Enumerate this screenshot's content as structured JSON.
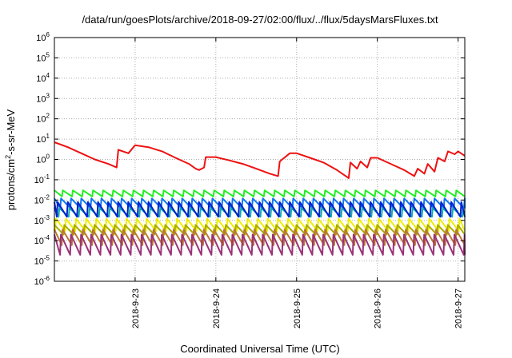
{
  "chart_data": {
    "type": "line",
    "title": "/data/run/goesPlots/archive/2018-09-27/02:00/flux/../flux/5daysMarsFluxes.txt",
    "xlabel": "Coordinated Universal Time (UTC)",
    "ylabel": "protons/cm2-s-sr-MeV",
    "ylabel_parts": {
      "base": "protons/cm",
      "sup": "2",
      "rest": "-s-sr-MeV"
    },
    "yscale": "log",
    "ylim_exp": [
      -6,
      6
    ],
    "ytick_labels": [
      {
        "base": "10",
        "exp": "-6"
      },
      {
        "base": "10",
        "exp": "-5"
      },
      {
        "base": "10",
        "exp": "-4"
      },
      {
        "base": "10",
        "exp": "-3"
      },
      {
        "base": "10",
        "exp": "-2"
      },
      {
        "base": "10",
        "exp": "-1"
      },
      {
        "base": "10",
        "exp": "0"
      },
      {
        "base": "10",
        "exp": "1"
      },
      {
        "base": "10",
        "exp": "2"
      },
      {
        "base": "10",
        "exp": "3"
      },
      {
        "base": "10",
        "exp": "4"
      },
      {
        "base": "10",
        "exp": "5"
      },
      {
        "base": "10",
        "exp": "6"
      }
    ],
    "x_start": "2018-09-22 00:00",
    "x_end": "2018-09-27 02:00",
    "xticks": [
      "2018-9-23",
      "2018-9-24",
      "2018-9-25",
      "2018-9-26",
      "2018-9-27"
    ],
    "grid": true,
    "series": [
      {
        "color": "#ee1111",
        "x": [
          "2018-09-22 00:00",
          "2018-09-22 04:00",
          "2018-09-22 08:00",
          "2018-09-22 12:00",
          "2018-09-22 16:00",
          "2018-09-22 18:30",
          "2018-09-22 19:00",
          "2018-09-22 22:00",
          "2018-09-23 00:00",
          "2018-09-23 04:00",
          "2018-09-23 08:00",
          "2018-09-23 12:00",
          "2018-09-23 16:00",
          "2018-09-23 18:00",
          "2018-09-23 19:00",
          "2018-09-23 20:30",
          "2018-09-23 21:00",
          "2018-09-24 00:00",
          "2018-09-24 04:00",
          "2018-09-24 08:00",
          "2018-09-24 12:00",
          "2018-09-24 16:00",
          "2018-09-24 18:30",
          "2018-09-24 19:00",
          "2018-09-24 22:00",
          "2018-09-25 00:00",
          "2018-09-25 04:00",
          "2018-09-25 08:00",
          "2018-09-25 12:00",
          "2018-09-25 15:30",
          "2018-09-25 16:00",
          "2018-09-25 18:00",
          "2018-09-25 19:00",
          "2018-09-25 21:00",
          "2018-09-25 22:00",
          "2018-09-26 00:00",
          "2018-09-26 04:00",
          "2018-09-26 08:00",
          "2018-09-26 11:00",
          "2018-09-26 12:00",
          "2018-09-26 14:00",
          "2018-09-26 15:00",
          "2018-09-26 17:00",
          "2018-09-26 18:00",
          "2018-09-26 20:00",
          "2018-09-26 21:00",
          "2018-09-26 23:00",
          "2018-09-27 00:00",
          "2018-09-27 02:00"
        ],
        "y": [
          7,
          4,
          2,
          1,
          0.6,
          0.4,
          3,
          2,
          5,
          4,
          2.5,
          1.2,
          0.6,
          0.35,
          0.3,
          0.4,
          1.3,
          1.3,
          0.9,
          0.6,
          0.35,
          0.2,
          0.15,
          0.8,
          2,
          2,
          1.2,
          0.7,
          0.3,
          0.12,
          0.7,
          0.35,
          0.8,
          0.4,
          1.2,
          1.2,
          0.6,
          0.3,
          0.15,
          0.35,
          0.2,
          0.6,
          0.25,
          1.2,
          0.8,
          2.5,
          1.8,
          2.5,
          1.5
        ]
      },
      {
        "color": "#22ee22",
        "pattern": "sawtooth",
        "sawtooth_period_hours": 3,
        "high": 0.03,
        "low": 0.015
      },
      {
        "color": "#1177ee",
        "pattern": "sawtooth",
        "sawtooth_period_hours": 3,
        "high": 0.012,
        "low": 0.004
      },
      {
        "color": "#11aaaa",
        "pattern": "sawtooth",
        "sawtooth_period_hours": 3,
        "high": 0.004,
        "low": 0.0015
      },
      {
        "color": "#0022cc",
        "pattern": "sawtooth",
        "sawtooth_period_hours": 3,
        "high": 0.008,
        "low": 0.0015
      },
      {
        "color": "#eeee00",
        "pattern": "sawtooth",
        "sawtooth_period_hours": 3,
        "high": 0.0012,
        "low": 0.0003
      },
      {
        "color": "#aaaa00",
        "pattern": "sawtooth",
        "sawtooth_period_hours": 3,
        "high": 0.0006,
        "low": 0.0002
      },
      {
        "color": "#bb7733",
        "pattern": "sawtooth",
        "sawtooth_period_hours": 3,
        "high": 0.00035,
        "low": 6e-05
      },
      {
        "color": "#993377",
        "pattern": "sawtooth",
        "sawtooth_period_hours": 3,
        "high": 0.0002,
        "low": 2e-05
      }
    ]
  }
}
